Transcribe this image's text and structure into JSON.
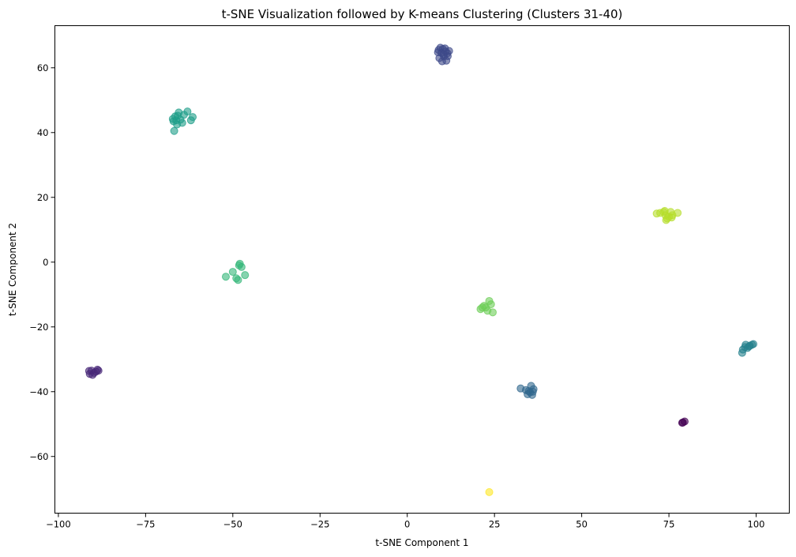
{
  "chart_data": {
    "type": "scatter",
    "title": "t-SNE Visualization followed by K-means Clustering (Clusters 31-40)",
    "xlabel": "t-SNE Component 1",
    "ylabel": "t-SNE Component 2",
    "xlim": [
      -101,
      109.5
    ],
    "ylim": [
      -77.5,
      73
    ],
    "xticks": [
      -100,
      -75,
      -50,
      -25,
      0,
      25,
      50,
      75,
      100
    ],
    "yticks": [
      -60,
      -40,
      -20,
      0,
      20,
      40,
      60
    ],
    "grid": false,
    "legend": "none",
    "colormap": "viridis",
    "clusters": [
      {
        "cluster": 31,
        "color": "#440154",
        "points": [
          [
            79.0,
            -49.5
          ],
          [
            79.5,
            -49.2
          ],
          [
            78.8,
            -49.6
          ]
        ]
      },
      {
        "cluster": 32,
        "color": "#482878",
        "points": [
          [
            -91.0,
            -34.5
          ],
          [
            -90.5,
            -33.5
          ],
          [
            -89.8,
            -34.2
          ],
          [
            -88.8,
            -33.2
          ],
          [
            -89.2,
            -33.8
          ],
          [
            -90.2,
            -34.8
          ],
          [
            -88.5,
            -33.5
          ],
          [
            -91.2,
            -33.6
          ]
        ]
      },
      {
        "cluster": 33,
        "color": "#3e4989",
        "points": [
          [
            9.0,
            65.5
          ],
          [
            9.5,
            66.2
          ],
          [
            10.2,
            65.8
          ],
          [
            11.0,
            65.0
          ],
          [
            11.5,
            64.5
          ],
          [
            10.5,
            63.5
          ],
          [
            9.2,
            63.0
          ],
          [
            10.0,
            62.0
          ],
          [
            11.2,
            62.2
          ],
          [
            12.0,
            65.2
          ],
          [
            9.8,
            64.6
          ],
          [
            10.8,
            66.0
          ],
          [
            8.8,
            64.8
          ],
          [
            11.6,
            63.6
          ],
          [
            10.4,
            64.2
          ]
        ]
      },
      {
        "cluster": 34,
        "color": "#31688e",
        "points": [
          [
            32.5,
            -39.0
          ],
          [
            34.0,
            -39.5
          ],
          [
            35.2,
            -40.2
          ],
          [
            36.0,
            -40.0
          ],
          [
            35.5,
            -38.2
          ],
          [
            34.5,
            -40.8
          ],
          [
            36.2,
            -39.2
          ],
          [
            35.8,
            -41.0
          ],
          [
            34.8,
            -39.8
          ]
        ]
      },
      {
        "cluster": 35,
        "color": "#26828e",
        "points": [
          [
            96.0,
            -28.0
          ],
          [
            96.2,
            -27.0
          ],
          [
            97.0,
            -25.5
          ],
          [
            98.0,
            -26.0
          ],
          [
            98.8,
            -25.5
          ],
          [
            97.5,
            -26.5
          ],
          [
            96.8,
            -26.2
          ],
          [
            98.2,
            -25.8
          ],
          [
            99.2,
            -25.3
          ]
        ]
      },
      {
        "cluster": 36,
        "color": "#1f9e89",
        "points": [
          [
            -67.0,
            43.5
          ],
          [
            -66.5,
            45.0
          ],
          [
            -65.5,
            46.2
          ],
          [
            -63.0,
            46.5
          ],
          [
            -61.5,
            44.8
          ],
          [
            -62.0,
            43.8
          ],
          [
            -64.5,
            43.0
          ],
          [
            -66.0,
            42.5
          ],
          [
            -66.8,
            40.5
          ],
          [
            -65.0,
            44.0
          ],
          [
            -67.2,
            44.2
          ],
          [
            -66.2,
            43.8
          ],
          [
            -64.0,
            45.5
          ],
          [
            -65.8,
            45.2
          ]
        ]
      },
      {
        "cluster": 37,
        "color": "#35b779",
        "points": [
          [
            -48.0,
            -0.5
          ],
          [
            -47.5,
            -1.5
          ],
          [
            -46.5,
            -4.0
          ],
          [
            -50.0,
            -3.0
          ],
          [
            -52.0,
            -4.5
          ],
          [
            -48.5,
            -5.5
          ],
          [
            -49.0,
            -5.0
          ],
          [
            -48.2,
            -1.0
          ]
        ]
      },
      {
        "cluster": 38,
        "color": "#6ece58",
        "points": [
          [
            21.0,
            -14.5
          ],
          [
            22.0,
            -13.5
          ],
          [
            23.5,
            -12.0
          ],
          [
            24.0,
            -13.0
          ],
          [
            23.0,
            -15.0
          ],
          [
            24.5,
            -15.5
          ],
          [
            22.5,
            -14.0
          ],
          [
            21.5,
            -14.0
          ]
        ]
      },
      {
        "cluster": 39,
        "color": "#b5de2b",
        "points": [
          [
            71.5,
            15.0
          ],
          [
            72.5,
            15.2
          ],
          [
            73.5,
            15.5
          ],
          [
            74.0,
            14.5
          ],
          [
            74.5,
            13.5
          ],
          [
            75.0,
            14.0
          ],
          [
            75.5,
            15.5
          ],
          [
            76.0,
            14.5
          ],
          [
            77.5,
            15.2
          ],
          [
            74.2,
            13.0
          ],
          [
            75.8,
            13.8
          ],
          [
            73.8,
            15.8
          ]
        ]
      },
      {
        "cluster": 40,
        "color": "#fde725",
        "points": [
          [
            23.5,
            -71.0
          ]
        ]
      }
    ]
  }
}
